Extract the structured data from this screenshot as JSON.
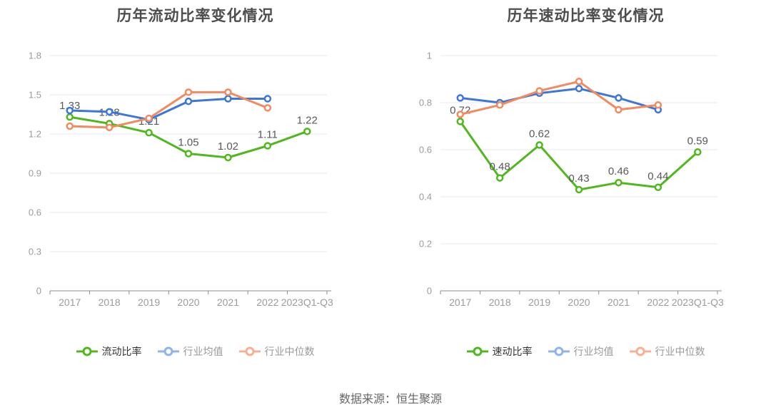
{
  "colors": {
    "series_green": "#50b81e",
    "series_blue": "#3d76da",
    "series_orange": "#f28a60",
    "legend_green": "#50b81e",
    "legend_blue": "#8fb3ec",
    "legend_orange": "#f7b093",
    "grid": "#e4e9f3",
    "axis": "#8c8c8c",
    "tick_label": "#9b9b9b",
    "point_label": "#595959",
    "marker_fill": "#ffffff"
  },
  "chart_data": [
    {
      "type": "line",
      "title": "历年流动比率变化情况",
      "categories": [
        "2017",
        "2018",
        "2019",
        "2020",
        "2021",
        "2022",
        "2023Q1-Q3"
      ],
      "xlabel": "",
      "ylabel": "",
      "ylim": [
        0,
        1.8
      ],
      "yticks": [
        0,
        0.3,
        0.6,
        0.9,
        1.2,
        1.5,
        1.8
      ],
      "grid": true,
      "legend_position": "bottom",
      "series": [
        {
          "name": "流动比率",
          "color_key": "green",
          "values": [
            1.33,
            1.28,
            1.21,
            1.05,
            1.02,
            1.11,
            1.22
          ],
          "labels": [
            "1.33",
            "1.28",
            "1.21",
            "1.05",
            "1.02",
            "1.11",
            "1.22"
          ],
          "show_labels": true
        },
        {
          "name": "行业均值",
          "color_key": "blue",
          "values": [
            1.38,
            1.37,
            1.31,
            1.45,
            1.47,
            1.47
          ],
          "show_labels": false
        },
        {
          "name": "行业中位数",
          "color_key": "orange",
          "values": [
            1.26,
            1.25,
            1.32,
            1.52,
            1.52,
            1.4
          ],
          "show_labels": false
        }
      ]
    },
    {
      "type": "line",
      "title": "历年速动比率变化情况",
      "categories": [
        "2017",
        "2018",
        "2019",
        "2020",
        "2021",
        "2022",
        "2023Q1-Q3"
      ],
      "xlabel": "",
      "ylabel": "",
      "ylim": [
        0,
        1
      ],
      "yticks": [
        0,
        0.2,
        0.4,
        0.6,
        0.8,
        1
      ],
      "grid": true,
      "legend_position": "bottom",
      "series": [
        {
          "name": "速动比率",
          "color_key": "green",
          "values": [
            0.72,
            0.48,
            0.62,
            0.43,
            0.46,
            0.44,
            0.59
          ],
          "labels": [
            "0.72",
            "0.48",
            "0.62",
            "0.43",
            "0.46",
            "0.44",
            "0.59"
          ],
          "show_labels": true
        },
        {
          "name": "行业均值",
          "color_key": "blue",
          "values": [
            0.82,
            0.8,
            0.84,
            0.86,
            0.82,
            0.77
          ],
          "show_labels": false
        },
        {
          "name": "行业中位数",
          "color_key": "orange",
          "values": [
            0.75,
            0.79,
            0.85,
            0.89,
            0.77,
            0.79
          ],
          "show_labels": false
        }
      ]
    }
  ],
  "footer": {
    "text": "数据来源：恒生聚源"
  }
}
